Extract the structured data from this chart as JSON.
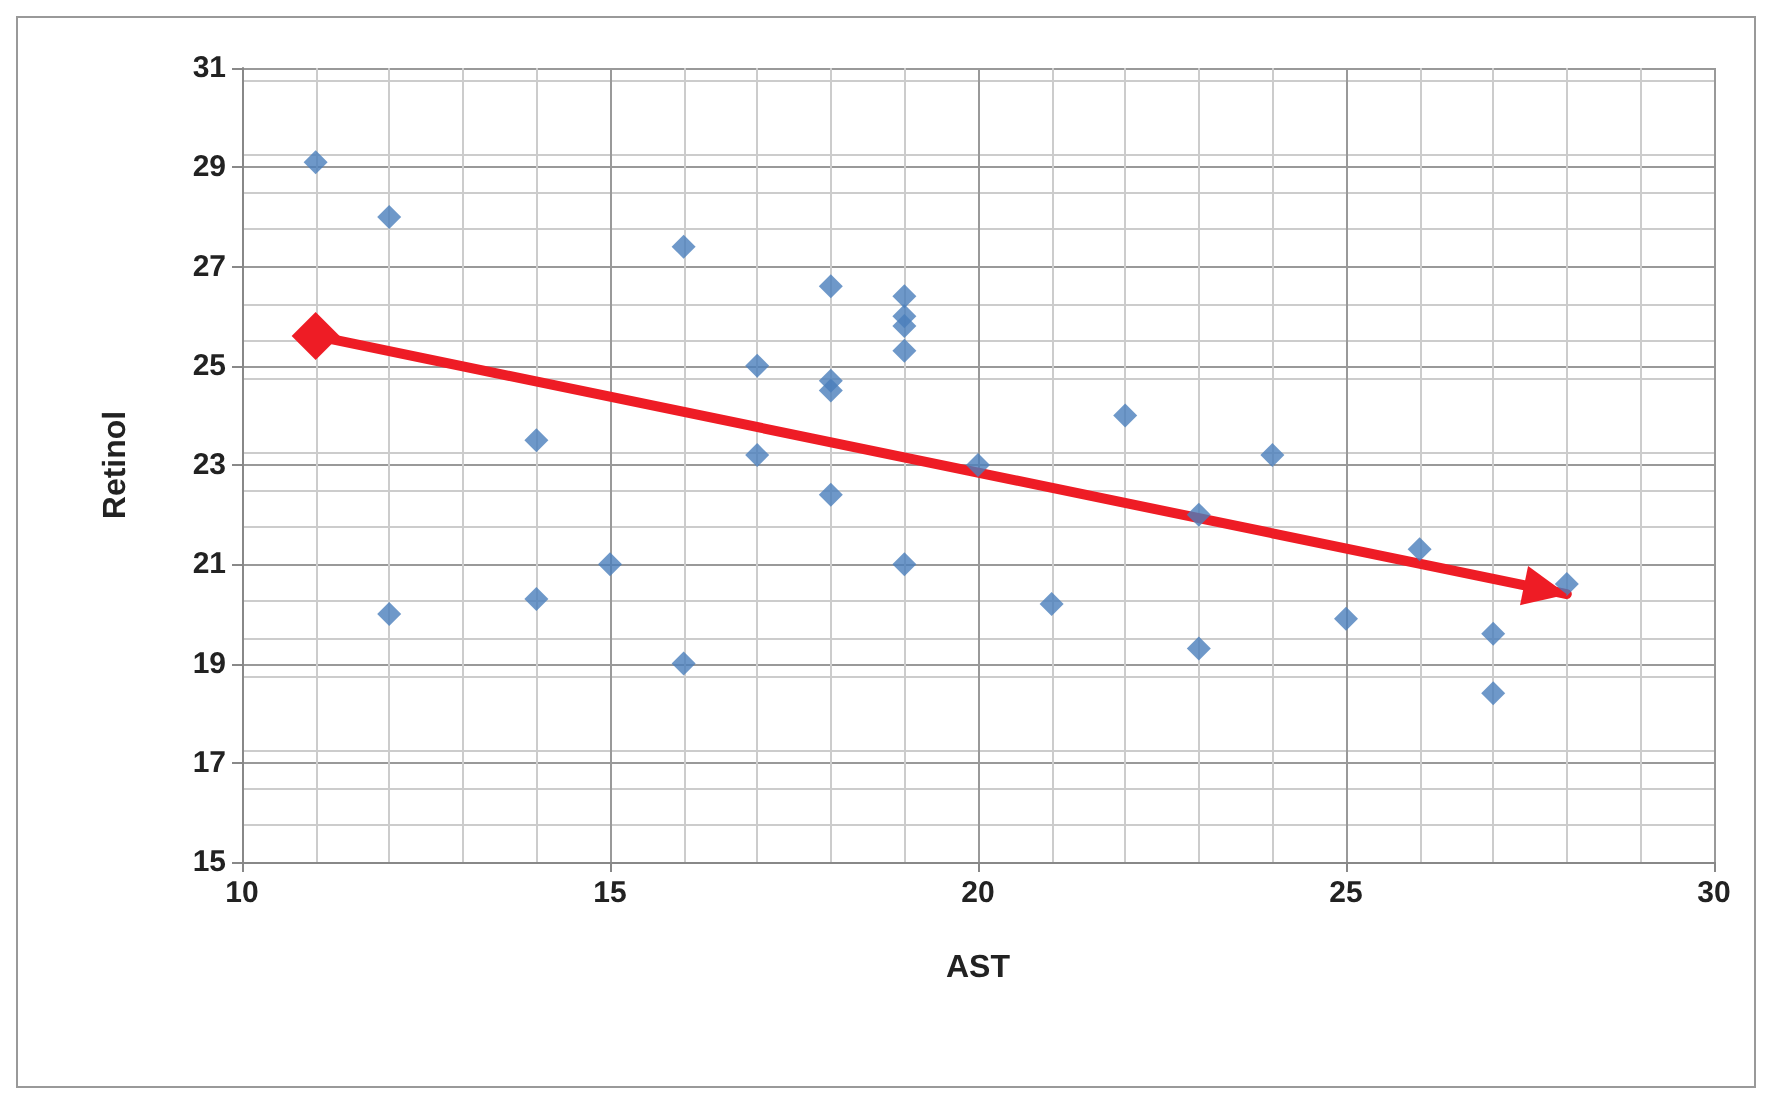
{
  "chart_data": {
    "type": "scatter",
    "xlabel": "AST",
    "ylabel": "Retinol",
    "xlim": [
      10,
      30
    ],
    "xticks": [
      10,
      15,
      20,
      25,
      30
    ],
    "ylim": [
      15,
      31
    ],
    "yticks": [
      15,
      17,
      19,
      21,
      23,
      25,
      27,
      29,
      31
    ],
    "grid": true,
    "marker": "diamond",
    "series": [
      {
        "color": "#4a7ebb",
        "x": [
          11,
          12,
          12,
          14,
          14,
          15,
          16,
          16,
          17,
          17,
          18,
          18,
          18,
          18,
          19,
          19,
          19,
          19,
          19,
          20,
          21,
          22,
          23,
          23,
          24,
          25,
          26,
          27,
          27,
          28
        ],
        "values": [
          29.1,
          28.0,
          20.0,
          23.5,
          20.3,
          21.0,
          27.4,
          19.0,
          25.0,
          23.2,
          26.6,
          24.7,
          24.5,
          22.4,
          26.4,
          26.0,
          25.8,
          25.3,
          21.0,
          23.0,
          20.2,
          24.0,
          22.0,
          19.3,
          23.2,
          19.9,
          21.3,
          19.6,
          18.4,
          20.6
        ]
      },
      {
        "type": "line",
        "color": "#ee1c25",
        "x": [
          11,
          28
        ],
        "values": [
          25.6,
          20.4
        ]
      }
    ]
  }
}
